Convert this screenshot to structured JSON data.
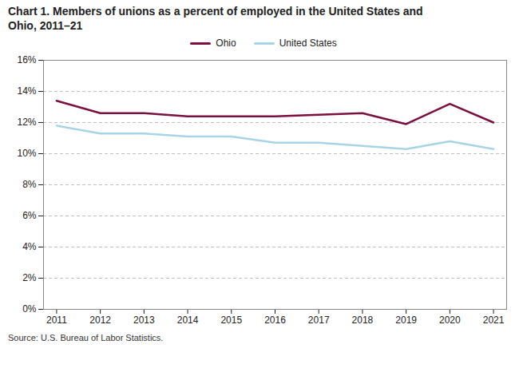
{
  "chart_data": {
    "type": "line",
    "title": "Chart 1. Members of unions as a percent of employed  in the United States and\nOhio, 2011–21",
    "source": "Source: U.S. Bureau of Labor Statistics.",
    "x": [
      2011,
      2012,
      2013,
      2014,
      2015,
      2016,
      2017,
      2018,
      2019,
      2020,
      2021
    ],
    "series": [
      {
        "name": "Ohio",
        "color": "#7b1040",
        "values": [
          13.4,
          12.6,
          12.6,
          12.4,
          12.4,
          12.4,
          12.5,
          12.6,
          11.9,
          13.2,
          12.0
        ]
      },
      {
        "name": "United States",
        "color": "#a8d4e8",
        "values": [
          11.8,
          11.3,
          11.3,
          11.1,
          11.1,
          10.7,
          10.7,
          10.5,
          10.3,
          10.8,
          10.3
        ]
      }
    ],
    "xlim": [
      2010.7,
      2021.3
    ],
    "xticks": [
      2011,
      2012,
      2013,
      2014,
      2015,
      2016,
      2017,
      2018,
      2019,
      2020,
      2021
    ],
    "ylim": [
      0,
      16
    ],
    "yticks": [
      {
        "value": 0,
        "label": "0%"
      },
      {
        "value": 2,
        "label": "2%"
      },
      {
        "value": 4,
        "label": "4%"
      },
      {
        "value": 6,
        "label": "6%"
      },
      {
        "value": 8,
        "label": "8%"
      },
      {
        "value": 10,
        "label": "10%"
      },
      {
        "value": 12,
        "label": "12%"
      },
      {
        "value": 14,
        "label": "14%"
      },
      {
        "value": 16,
        "label": "16%"
      }
    ],
    "grid": true,
    "legend": "top"
  }
}
